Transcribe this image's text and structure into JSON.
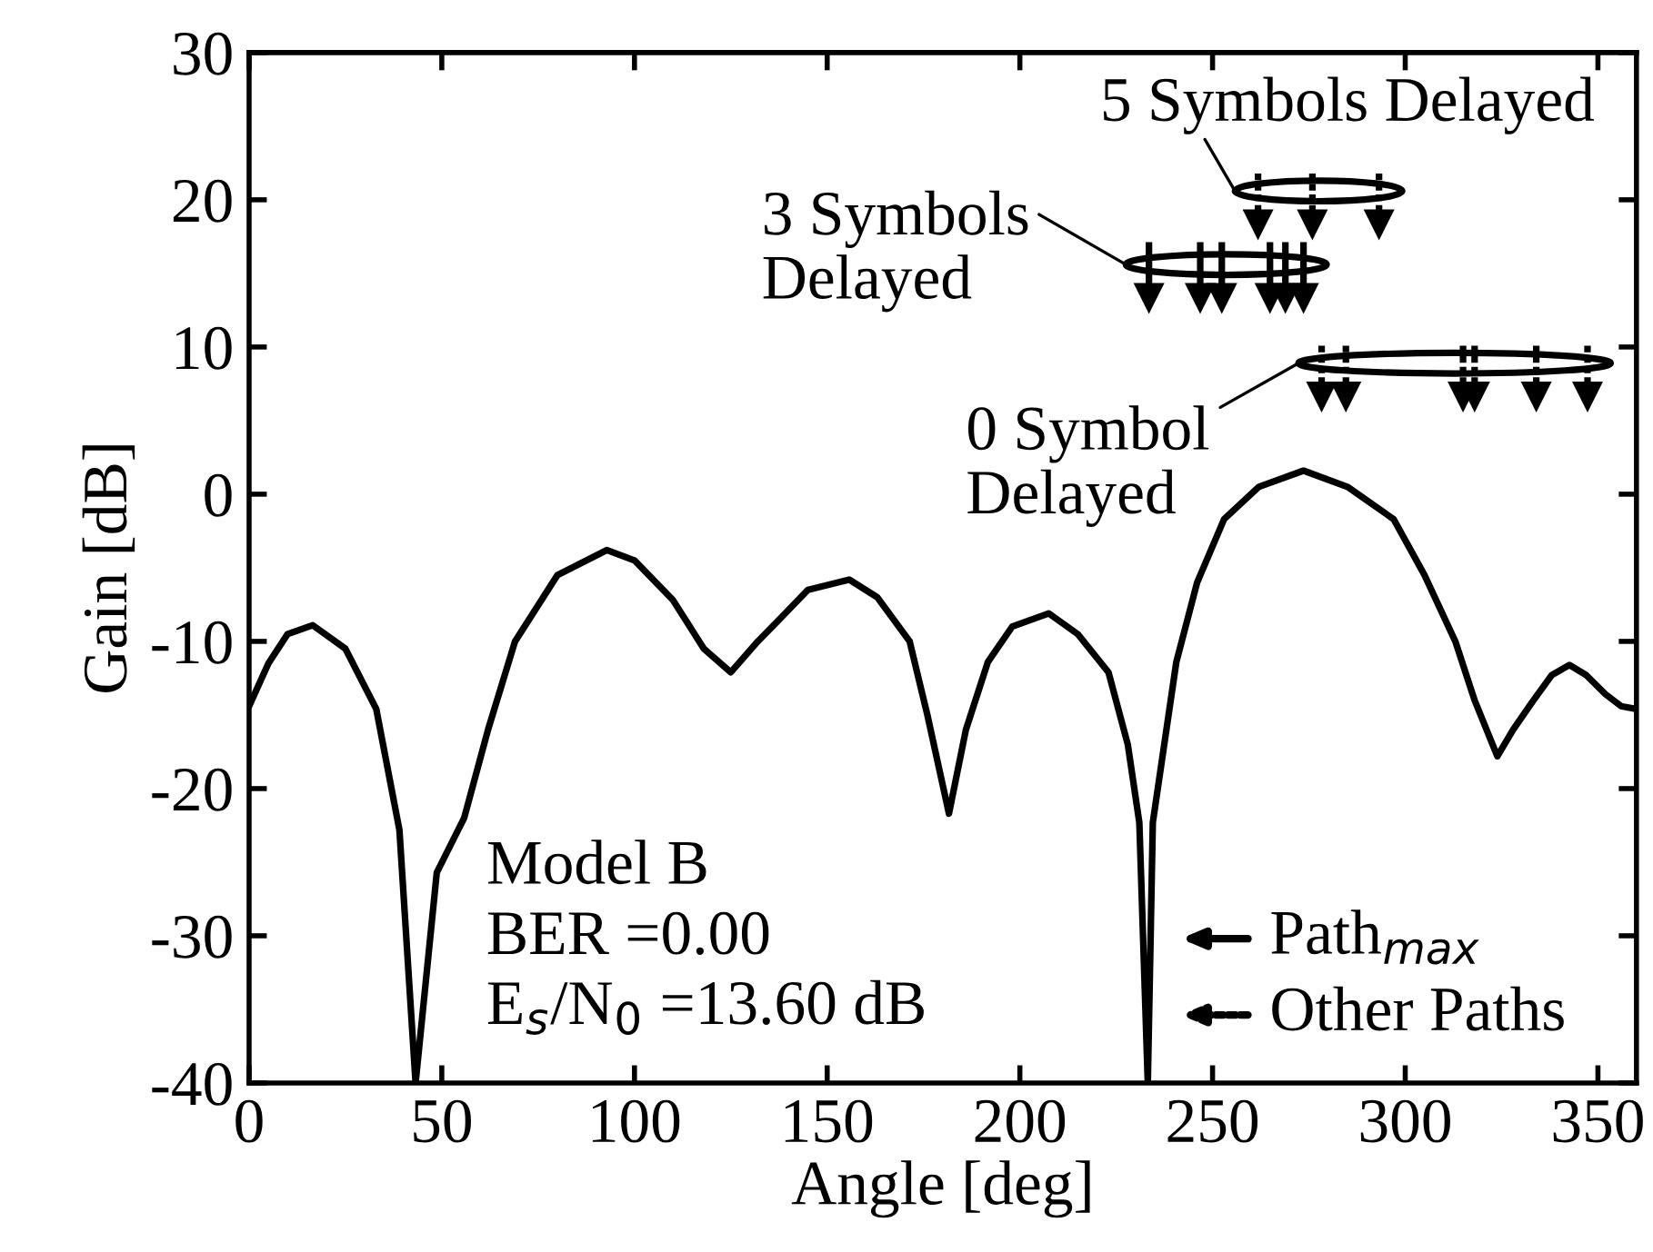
{
  "chart_data": {
    "type": "line",
    "xlabel": "Angle [deg]",
    "ylabel": "Gain [dB]",
    "xlim": [
      0,
      360
    ],
    "xticks": [
      0,
      50,
      100,
      150,
      200,
      250,
      300,
      350
    ],
    "ylim": [
      -40,
      30
    ],
    "yticks": [
      -40,
      -30,
      -20,
      -10,
      0,
      10,
      20,
      30
    ],
    "grid": false,
    "legend": "bottom right",
    "series": [
      {
        "color": "#000000",
        "line_style": "solid",
        "x": [
          0,
          5,
          10,
          16.5,
          25,
          33,
          39,
          43.2,
          48.7,
          55.8,
          62,
          69,
          80,
          92.8,
          100,
          110,
          118,
          125,
          132,
          138,
          145,
          155.7,
          163,
          171.4,
          176,
          181.6,
          186,
          191.7,
          198,
          207.5,
          215,
          223,
          228,
          231,
          233.2,
          234.5,
          240.6,
          246,
          253,
          262,
          273.6,
          285,
          297,
          305,
          313,
          318,
          323.9,
          328,
          333,
          338,
          342.6,
          347,
          352,
          356,
          360
        ],
        "values": [
          -14.4,
          -11.5,
          -9.5,
          -8.9,
          -10.5,
          -14.6,
          -22.8,
          -40,
          -25.7,
          -22,
          -16,
          -10,
          -5.5,
          -3.8,
          -4.5,
          -7.2,
          -10.5,
          -12.1,
          -10,
          -8.4,
          -6.5,
          -5.8,
          -7,
          -10,
          -15,
          -21.7,
          -16,
          -11.4,
          -9,
          -8.1,
          -9.5,
          -12.1,
          -17,
          -22.3,
          -40,
          -22.3,
          -11.4,
          -6,
          -1.7,
          0.5,
          1.6,
          0.5,
          -1.7,
          -5.5,
          -10,
          -14,
          -17.8,
          -16,
          -14.1,
          -12.3,
          -11.6,
          -12.3,
          -13.6,
          -14.4,
          -14.6
        ]
      },
      {
        "type": "scatter",
        "marker": "triangle",
        "name": "Path$_{max}$",
        "color": "#000000",
        "line_style": "solid",
        "x": [
          233.5,
          246.8,
          252.4,
          264.9,
          268.9,
          273.6
        ],
        "values": [
          13.3,
          13.3,
          13.3,
          13.3,
          13.3,
          13.3
        ]
      },
      {
        "type": "scatter",
        "marker": "triangle",
        "name": "Other Paths",
        "color": "#000000",
        "line_style": "dotted",
        "x": [
          261.8,
          275.9,
          293.2
        ],
        "values": [
          18.3,
          18.3,
          18.3
        ]
      },
      {
        "type": "scatter",
        "marker": "triangle",
        "color": "#000000",
        "line_style": "dotted",
        "x": [
          278.3,
          284.6,
          315,
          318,
          334,
          347.3
        ],
        "values": [
          6.6,
          6.6,
          6.6,
          6.6,
          6.6,
          6.6
        ]
      }
    ],
    "annotations": [
      "5 Symbols Delayed",
      "3 Symbols\nDelayed",
      "0 Symbol\nDelayed",
      "Model B\nBER =0.00\nE$_{s}$/N$_{0}$ =13.60 dB"
    ]
  }
}
